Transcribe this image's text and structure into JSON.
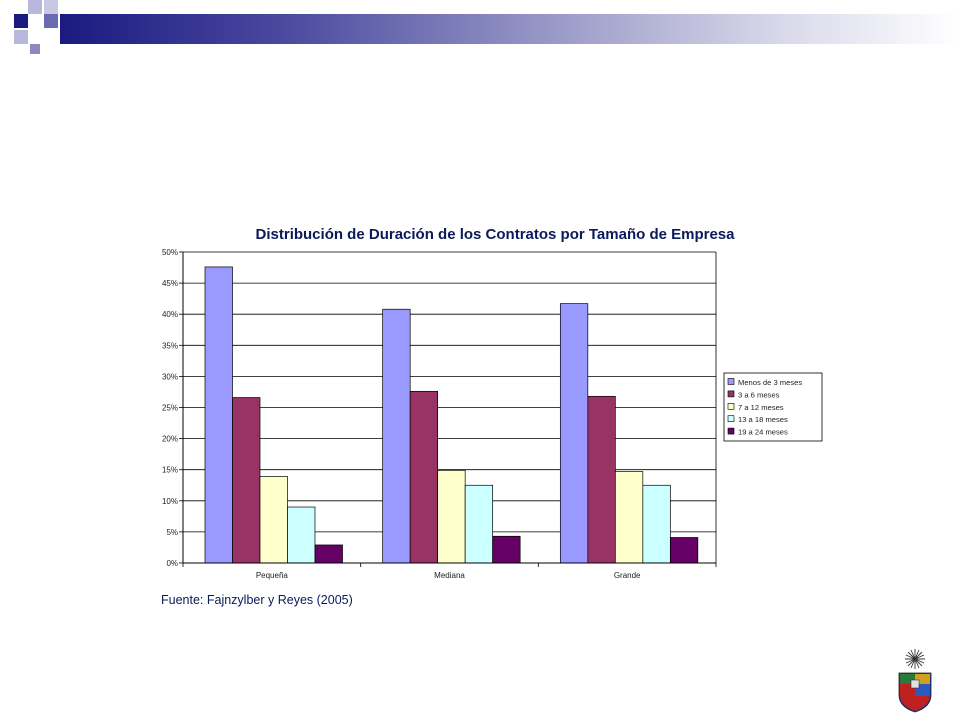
{
  "chart_data": {
    "type": "bar",
    "title": "Distribución de Duración de los Contratos por Tamaño de Empresa",
    "categories": [
      "Pequeña",
      "Mediana",
      "Grande"
    ],
    "series": [
      {
        "name": "Menos de 3 meses",
        "color": "#9999ff",
        "values": [
          47.6,
          40.8,
          41.7
        ]
      },
      {
        "name": "3 a 6 meses",
        "color": "#993366",
        "values": [
          26.6,
          27.6,
          26.8
        ]
      },
      {
        "name": "7 a 12 meses",
        "color": "#ffffcc",
        "values": [
          13.9,
          14.9,
          14.7
        ]
      },
      {
        "name": "13 a 18 meses",
        "color": "#ccffff",
        "values": [
          9.0,
          12.5,
          12.5
        ]
      },
      {
        "name": "19 a 24 meses",
        "color": "#660066",
        "values": [
          2.9,
          4.3,
          4.1
        ]
      }
    ],
    "ylim": [
      0,
      50
    ],
    "y_ticks": [
      0,
      5,
      10,
      15,
      20,
      25,
      30,
      35,
      40,
      45,
      50
    ],
    "y_tick_labels": [
      "0%",
      "5%",
      "10%",
      "15%",
      "20%",
      "25%",
      "30%",
      "35%",
      "40%",
      "45%",
      "50%"
    ],
    "grid": true,
    "legend_placement": "right",
    "plot_background": "#ffffff",
    "bar_outline_color": "#000000"
  },
  "source_note": "Fuente: Fajnzylber y Reyes (2005)",
  "theme": {
    "header_dark": "#1a1a80",
    "header_mid": "#6a6ab0",
    "header_light": "#b8b8dc",
    "title_color": "#0a1a5a"
  },
  "logo": {
    "icon": "university-crest-icon"
  }
}
